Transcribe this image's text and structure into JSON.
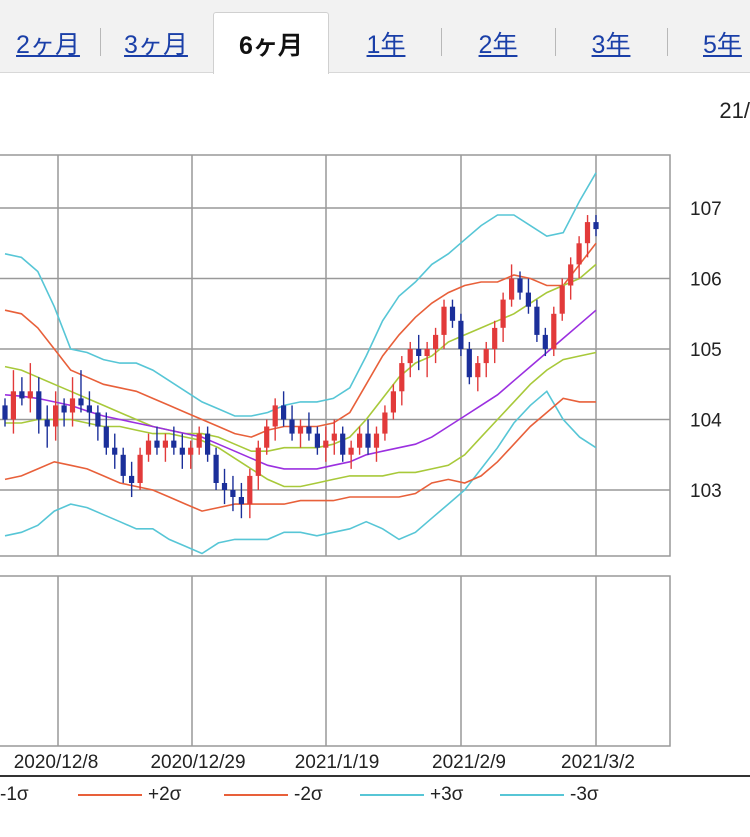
{
  "tabs": [
    {
      "label": "2ヶ月",
      "active": false
    },
    {
      "label": "3ヶ月",
      "active": false
    },
    {
      "label": "6ヶ月",
      "active": true
    },
    {
      "label": "1年",
      "active": false
    },
    {
      "label": "2年",
      "active": false
    },
    {
      "label": "3年",
      "active": false
    },
    {
      "label": "5年",
      "active": false
    }
  ],
  "header_date": "21/",
  "colors": {
    "up": "#e23a3a",
    "down": "#1b2f9a",
    "ma": "#9b30e0",
    "sigma1": "#a8c93a",
    "sigma2": "#e8603a",
    "sigma3": "#57c6d6",
    "grid": "#999999"
  },
  "legend": [
    {
      "label": "-1σ",
      "color": "#a8c93a"
    },
    {
      "label": "+2σ",
      "color": "#e8603a"
    },
    {
      "label": "-2σ",
      "color": "#e8603a"
    },
    {
      "label": "+3σ",
      "color": "#57c6d6"
    },
    {
      "label": "-3σ",
      "color": "#57c6d6"
    }
  ],
  "chart_data": {
    "type": "candlestick",
    "y_ticks": [
      103,
      104,
      105,
      106,
      107
    ],
    "ylim": [
      102.2,
      107.9
    ],
    "x_ticks": [
      "2020/12/8",
      "2020/12/29",
      "2021/1/19",
      "2021/2/9",
      "2021/3/2"
    ],
    "candles": [
      [
        104.2,
        104.3,
        103.9,
        104.0
      ],
      [
        104.0,
        104.7,
        103.8,
        104.4
      ],
      [
        104.4,
        104.6,
        104.2,
        104.3
      ],
      [
        104.3,
        104.8,
        104.1,
        104.4
      ],
      [
        104.4,
        104.6,
        103.8,
        104.0
      ],
      [
        104.0,
        104.2,
        103.6,
        103.9
      ],
      [
        103.9,
        104.4,
        103.7,
        104.2
      ],
      [
        104.2,
        104.3,
        103.9,
        104.1
      ],
      [
        104.1,
        104.6,
        103.9,
        104.3
      ],
      [
        104.3,
        104.7,
        104.1,
        104.2
      ],
      [
        104.2,
        104.4,
        103.9,
        104.1
      ],
      [
        104.1,
        104.2,
        103.7,
        103.9
      ],
      [
        103.9,
        104.1,
        103.5,
        103.6
      ],
      [
        103.6,
        103.8,
        103.3,
        103.5
      ],
      [
        103.5,
        103.6,
        103.1,
        103.2
      ],
      [
        103.2,
        103.4,
        102.9,
        103.1
      ],
      [
        103.1,
        103.6,
        103.0,
        103.5
      ],
      [
        103.5,
        103.8,
        103.4,
        103.7
      ],
      [
        103.7,
        103.9,
        103.5,
        103.6
      ],
      [
        103.6,
        103.8,
        103.4,
        103.7
      ],
      [
        103.7,
        103.9,
        103.5,
        103.6
      ],
      [
        103.6,
        103.8,
        103.3,
        103.5
      ],
      [
        103.5,
        103.7,
        103.3,
        103.6
      ],
      [
        103.6,
        103.9,
        103.5,
        103.8
      ],
      [
        103.8,
        103.9,
        103.4,
        103.5
      ],
      [
        103.5,
        103.6,
        103.0,
        103.1
      ],
      [
        103.1,
        103.3,
        102.8,
        103.0
      ],
      [
        103.0,
        103.2,
        102.7,
        102.9
      ],
      [
        102.9,
        103.1,
        102.6,
        102.8
      ],
      [
        102.8,
        103.3,
        102.6,
        103.2
      ],
      [
        103.2,
        103.7,
        103.0,
        103.6
      ],
      [
        103.6,
        104.0,
        103.5,
        103.9
      ],
      [
        103.9,
        104.3,
        103.7,
        104.2
      ],
      [
        104.2,
        104.4,
        103.9,
        104.0
      ],
      [
        104.0,
        104.2,
        103.7,
        103.8
      ],
      [
        103.8,
        104.0,
        103.6,
        103.9
      ],
      [
        103.9,
        104.1,
        103.7,
        103.8
      ],
      [
        103.8,
        103.9,
        103.5,
        103.6
      ],
      [
        103.6,
        103.9,
        103.4,
        103.7
      ],
      [
        103.7,
        104.0,
        103.5,
        103.8
      ],
      [
        103.8,
        103.9,
        103.4,
        103.5
      ],
      [
        103.5,
        103.7,
        103.3,
        103.6
      ],
      [
        103.6,
        103.9,
        103.5,
        103.8
      ],
      [
        103.8,
        104.0,
        103.5,
        103.6
      ],
      [
        103.6,
        103.9,
        103.4,
        103.8
      ],
      [
        103.8,
        104.2,
        103.7,
        104.1
      ],
      [
        104.1,
        104.5,
        104.0,
        104.4
      ],
      [
        104.4,
        104.9,
        104.2,
        104.8
      ],
      [
        104.8,
        105.1,
        104.6,
        105.0
      ],
      [
        105.0,
        105.2,
        104.7,
        104.9
      ],
      [
        104.9,
        105.1,
        104.6,
        105.0
      ],
      [
        105.0,
        105.3,
        104.8,
        105.2
      ],
      [
        105.2,
        105.7,
        105.0,
        105.6
      ],
      [
        105.6,
        105.7,
        105.3,
        105.4
      ],
      [
        105.4,
        105.5,
        104.9,
        105.0
      ],
      [
        105.0,
        105.1,
        104.5,
        104.6
      ],
      [
        104.6,
        104.9,
        104.4,
        104.8
      ],
      [
        104.8,
        105.1,
        104.6,
        105.0
      ],
      [
        105.0,
        105.4,
        104.8,
        105.3
      ],
      [
        105.3,
        105.8,
        105.1,
        105.7
      ],
      [
        105.7,
        106.2,
        105.6,
        106.0
      ],
      [
        106.0,
        106.1,
        105.7,
        105.8
      ],
      [
        105.8,
        106.0,
        105.5,
        105.6
      ],
      [
        105.6,
        105.7,
        105.1,
        105.2
      ],
      [
        105.2,
        105.3,
        104.9,
        105.0
      ],
      [
        105.0,
        105.6,
        104.9,
        105.5
      ],
      [
        105.5,
        106.0,
        105.4,
        105.9
      ],
      [
        105.9,
        106.3,
        105.7,
        106.2
      ],
      [
        106.2,
        106.6,
        106.0,
        106.5
      ],
      [
        106.5,
        106.9,
        106.3,
        106.8
      ],
      [
        106.8,
        106.9,
        106.6,
        106.7
      ]
    ],
    "ma": [
      104.35,
      104.33,
      104.3,
      104.25,
      104.2,
      104.12,
      104.05,
      104.0,
      103.95,
      103.9,
      103.85,
      103.8,
      103.75,
      103.65,
      103.55,
      103.45,
      103.35,
      103.3,
      103.3,
      103.3,
      103.35,
      103.4,
      103.5,
      103.55,
      103.6,
      103.65,
      103.75,
      103.9,
      104.05,
      104.2,
      104.35,
      104.55,
      104.75,
      104.95,
      105.15,
      105.35,
      105.55
    ],
    "sigma_plus1": [
      104.75,
      104.7,
      104.6,
      104.5,
      104.4,
      104.3,
      104.2,
      104.1,
      104.0,
      103.9,
      103.85,
      103.8,
      103.8,
      103.75,
      103.65,
      103.55,
      103.55,
      103.6,
      103.6,
      103.6,
      103.65,
      103.75,
      104.0,
      104.3,
      104.6,
      104.8,
      104.9,
      105.1,
      105.2,
      105.3,
      105.4,
      105.5,
      105.65,
      105.8,
      105.9,
      106.0,
      106.2
    ],
    "sigma_minus1": [
      103.95,
      103.95,
      104.0,
      104.0,
      104.0,
      103.95,
      103.9,
      103.9,
      103.85,
      103.8,
      103.8,
      103.75,
      103.7,
      103.6,
      103.45,
      103.3,
      103.15,
      103.05,
      103.05,
      103.1,
      103.15,
      103.2,
      103.2,
      103.2,
      103.25,
      103.25,
      103.3,
      103.35,
      103.5,
      103.75,
      104.0,
      104.25,
      104.5,
      104.7,
      104.85,
      104.9,
      104.95
    ],
    "sigma_plus2": [
      105.55,
      105.5,
      105.3,
      105.0,
      104.7,
      104.6,
      104.5,
      104.45,
      104.4,
      104.3,
      104.2,
      104.1,
      104.0,
      103.9,
      103.8,
      103.75,
      103.85,
      103.9,
      103.9,
      103.9,
      103.95,
      104.1,
      104.5,
      104.9,
      105.2,
      105.45,
      105.65,
      105.8,
      105.9,
      105.95,
      105.95,
      106.05,
      106.0,
      105.9,
      105.9,
      106.2,
      106.5
    ],
    "sigma_minus2": [
      103.15,
      103.2,
      103.3,
      103.4,
      103.35,
      103.3,
      103.2,
      103.1,
      103.05,
      103.0,
      102.9,
      102.8,
      102.7,
      102.75,
      102.8,
      102.8,
      102.8,
      102.8,
      102.85,
      102.85,
      102.85,
      102.9,
      102.9,
      102.9,
      102.9,
      102.95,
      103.1,
      103.15,
      103.1,
      103.2,
      103.4,
      103.65,
      103.9,
      104.1,
      104.3,
      104.25,
      104.25
    ],
    "sigma_plus3": [
      106.35,
      106.3,
      106.1,
      105.6,
      105.0,
      104.95,
      104.85,
      104.8,
      104.8,
      104.7,
      104.55,
      104.4,
      104.25,
      104.15,
      104.05,
      104.05,
      104.1,
      104.2,
      104.25,
      104.25,
      104.3,
      104.45,
      104.9,
      105.4,
      105.75,
      105.95,
      106.2,
      106.35,
      106.55,
      106.75,
      106.9,
      106.9,
      106.75,
      106.6,
      106.65,
      107.1,
      107.5
    ],
    "sigma_minus3": [
      102.35,
      102.4,
      102.5,
      102.7,
      102.8,
      102.75,
      102.65,
      102.55,
      102.45,
      102.45,
      102.3,
      102.2,
      102.1,
      102.25,
      102.3,
      102.3,
      102.3,
      102.4,
      102.4,
      102.35,
      102.4,
      102.45,
      102.55,
      102.45,
      102.3,
      102.4,
      102.6,
      102.8,
      103.0,
      103.3,
      103.6,
      103.95,
      104.2,
      104.4,
      104.0,
      103.75,
      103.6
    ]
  }
}
